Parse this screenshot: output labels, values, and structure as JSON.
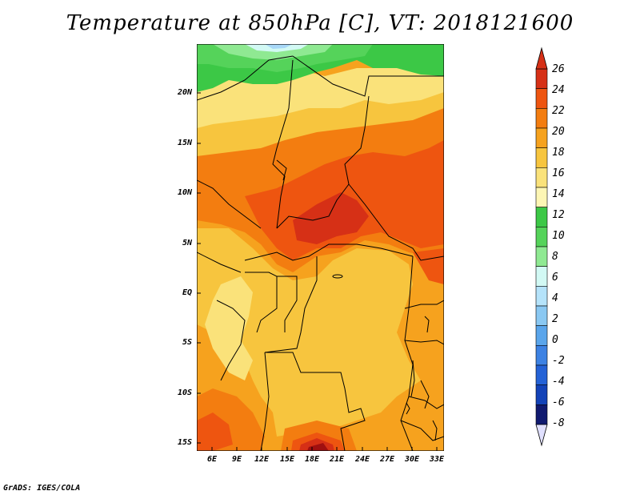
{
  "title": "Temperature at 850hPa [C], VT: 2018121600",
  "credit": "GrADS: IGES/COLA",
  "lat_labels": [
    "20N",
    "15N",
    "10N",
    "5N",
    "EQ",
    "5S",
    "10S",
    "15S"
  ],
  "lon_labels": [
    "6E",
    "9E",
    "12E",
    "15E",
    "18E",
    "21E",
    "24E",
    "27E",
    "30E",
    "33E"
  ],
  "colorbar": {
    "labels": [
      "26",
      "24",
      "22",
      "20",
      "18",
      "16",
      "14",
      "12",
      "10",
      "8",
      "6",
      "4",
      "2",
      "0",
      "-2",
      "-4",
      "-6",
      "-8"
    ],
    "colors": [
      "#a01010",
      "#d63016",
      "#ee5510",
      "#f37d10",
      "#f6a21e",
      "#f7c53e",
      "#fae27a",
      "#fdf6b4",
      "#2db83c",
      "#55d35a",
      "#8fe992",
      "#d2f9da",
      "#b5e3fa",
      "#8ac8f2",
      "#5aa5eb",
      "#3d82e3",
      "#2462d6",
      "#1343b8",
      "#0f2ba0",
      "#101a70"
    ]
  },
  "map_colors": {
    "green_dark": "#3cc846",
    "green": "#55d35a",
    "green_light": "#8fe992",
    "pale_green": "#c8f5c8",
    "blue_light": "#a8d8f8",
    "cyan_light": "#d2f9f4",
    "yellow_pale": "#fdf6b4",
    "yellow": "#fae27a",
    "gold": "#f7c53e",
    "orange_light": "#f6a21e",
    "orange": "#f37d10",
    "orange_red": "#ee5510",
    "red": "#d63016",
    "dark_red": "#a01010"
  }
}
